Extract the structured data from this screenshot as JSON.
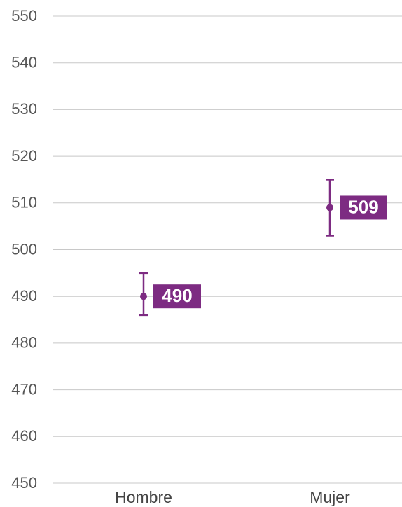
{
  "chart_data": {
    "type": "errorbar",
    "categories": [
      "Hombre",
      "Mujer"
    ],
    "values": [
      490,
      509
    ],
    "lower": [
      486,
      503
    ],
    "upper": [
      495,
      515
    ],
    "color": "#7d2b82",
    "ylim": [
      450,
      550
    ],
    "yticks": [
      450,
      460,
      470,
      480,
      490,
      500,
      510,
      520,
      530,
      540,
      550
    ],
    "grid": true
  }
}
